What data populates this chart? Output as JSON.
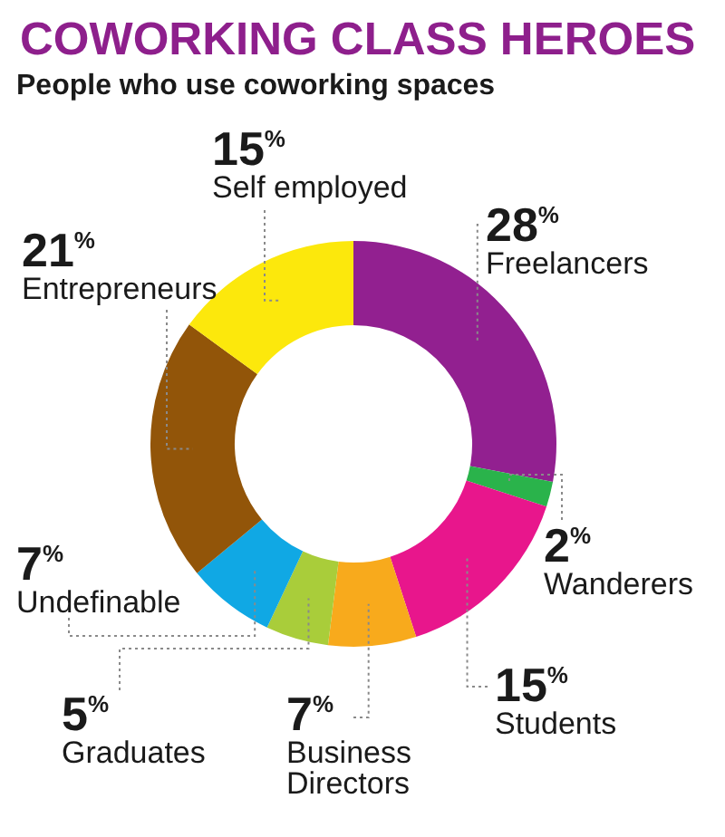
{
  "chart_data": {
    "type": "donut",
    "title": "COWORKING CLASS HEROES",
    "subtitle": "People who use coworking spaces",
    "categories": [
      "Freelancers",
      "Wanderers",
      "Students",
      "Business Directors",
      "Graduates",
      "Undefinable",
      "Entrepreneurs",
      "Self employed"
    ],
    "values": [
      28,
      2,
      15,
      7,
      5,
      7,
      21,
      15
    ],
    "colors": [
      "#922090",
      "#2ab34b",
      "#e8168c",
      "#f8aa1c",
      "#a9cd3a",
      "#10a8e4",
      "#925509",
      "#fce80c"
    ],
    "value_labels": [
      "28$^{%}$",
      "2$^{%}$",
      "15$^{%}$",
      "7$^{%}$",
      "5$^{%}$",
      "7$^{%}$",
      "21$^{%}$",
      "15$^{%}$"
    ]
  }
}
